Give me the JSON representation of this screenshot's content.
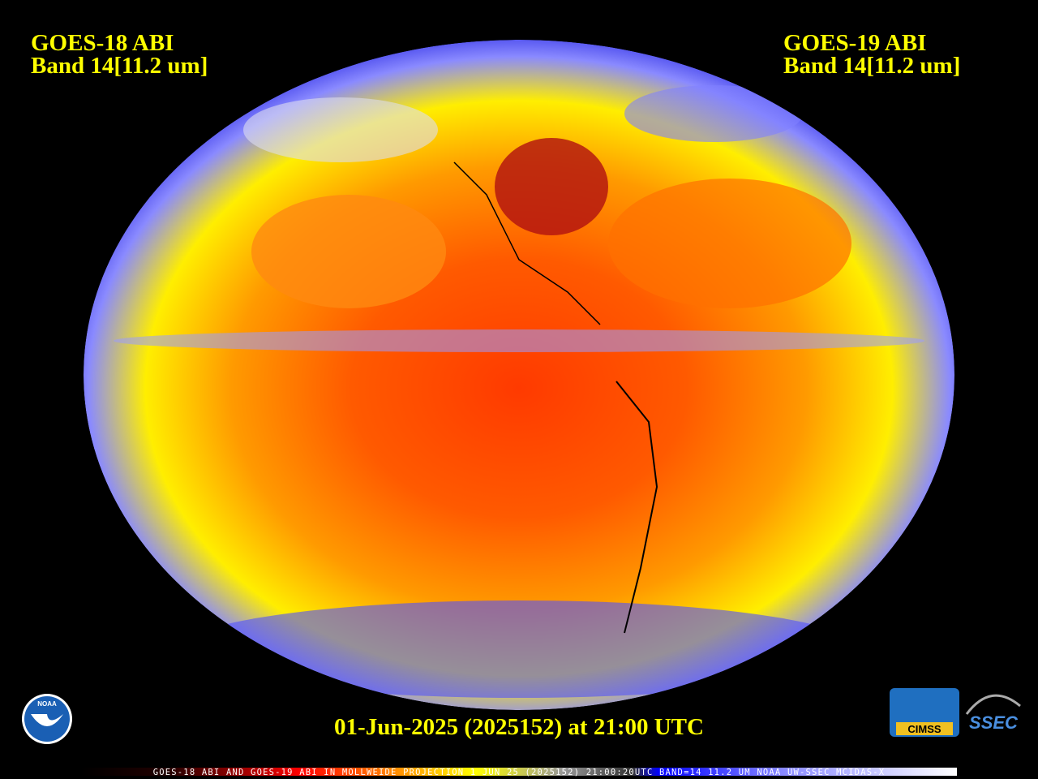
{
  "header": {
    "left": {
      "line1": "GOES-18 ABI",
      "line2": "Band 14[11.2 um]"
    },
    "right": {
      "line1": "GOES-19 ABI",
      "line2": "Band 14[11.2 um]"
    }
  },
  "timestamp": "01-Jun-2025 (2025152) at 21:00 UTC",
  "footer": "GOES-18 ABI AND GOES-19 ABI IN MOLLWEIDE PROJECTION 1 JUN 25 (2025152) 21:00:20UTC BAND=14 11.2 UM NOAA UW-SSEC MCIDAS-X",
  "logos": {
    "noaa": "NOAA",
    "cimss": "CIMSS",
    "ssec": "SSEC"
  }
}
